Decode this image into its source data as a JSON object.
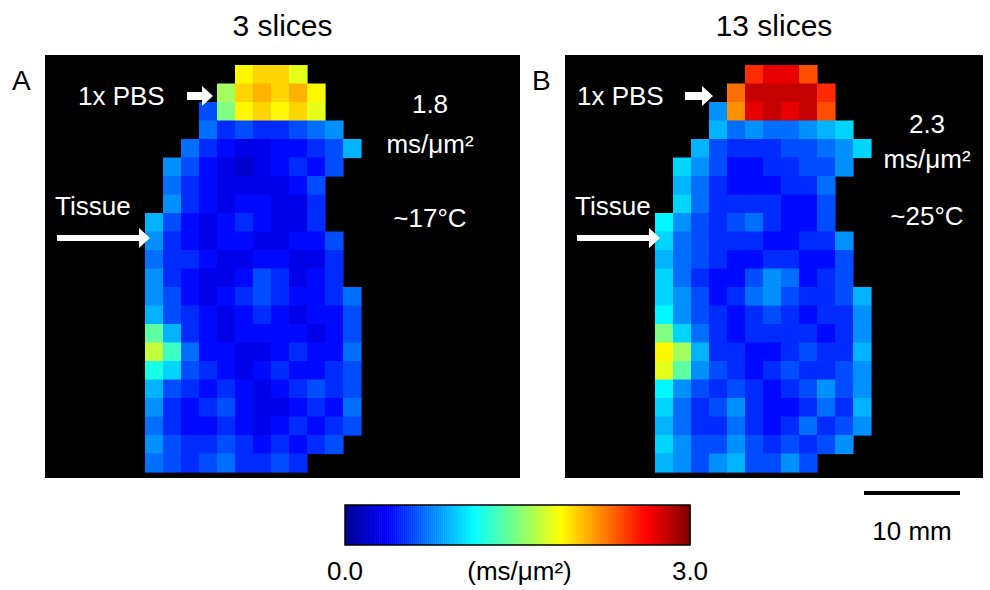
{
  "chart_data": [
    {
      "type": "heatmap",
      "title": "3 slices",
      "label": "A",
      "tick_labels": false,
      "annotations": {
        "medium": "1x PBS",
        "tissue": "Tissue",
        "value": "1.8 ms/μm²",
        "temperature": "~17°C"
      },
      "cells": [
        [
          null,
          null,
          null,
          null,
          null,
          1.9,
          2.0,
          2.0,
          1.8,
          null,
          null,
          null
        ],
        [
          null,
          null,
          null,
          null,
          1.6,
          2.0,
          2.1,
          2.0,
          2.1,
          1.9,
          null,
          null
        ],
        [
          null,
          null,
          null,
          0.6,
          1.5,
          1.9,
          2.0,
          1.9,
          2.0,
          1.8,
          null,
          null
        ],
        [
          null,
          null,
          null,
          0.7,
          0.5,
          0.6,
          0.5,
          0.5,
          0.6,
          0.7,
          0.8,
          null
        ],
        [
          null,
          null,
          0.7,
          0.5,
          0.4,
          0.3,
          0.3,
          0.4,
          0.4,
          0.5,
          0.6,
          0.9
        ],
        [
          null,
          0.8,
          0.6,
          0.4,
          0.3,
          0.2,
          0.3,
          0.4,
          0.5,
          0.4,
          0.6,
          null
        ],
        [
          null,
          0.7,
          0.5,
          0.4,
          0.3,
          0.3,
          0.3,
          0.3,
          0.4,
          0.6,
          null,
          null
        ],
        [
          null,
          0.8,
          0.5,
          0.4,
          0.3,
          0.4,
          0.4,
          0.3,
          0.3,
          0.5,
          null,
          null
        ],
        [
          0.9,
          0.6,
          0.4,
          0.3,
          0.4,
          0.5,
          0.4,
          0.3,
          0.3,
          0.5,
          null,
          null
        ],
        [
          0.8,
          0.5,
          0.4,
          0.3,
          0.4,
          0.4,
          0.3,
          0.3,
          0.4,
          0.4,
          0.6,
          null
        ],
        [
          0.7,
          0.5,
          0.5,
          0.4,
          0.3,
          0.3,
          0.4,
          0.4,
          0.3,
          0.3,
          0.5,
          null
        ],
        [
          0.8,
          0.5,
          0.4,
          0.3,
          0.3,
          0.4,
          0.6,
          0.5,
          0.3,
          0.4,
          0.5,
          null
        ],
        [
          0.8,
          0.6,
          0.4,
          0.3,
          0.4,
          0.5,
          0.6,
          0.5,
          0.4,
          0.4,
          0.5,
          0.7
        ],
        [
          0.9,
          0.6,
          0.5,
          0.4,
          0.3,
          0.4,
          0.5,
          0.4,
          0.3,
          0.4,
          0.4,
          0.6
        ],
        [
          1.4,
          0.9,
          0.5,
          0.4,
          0.3,
          0.4,
          0.4,
          0.4,
          0.4,
          0.3,
          0.4,
          0.6
        ],
        [
          1.7,
          1.3,
          0.7,
          0.4,
          0.4,
          0.3,
          0.3,
          0.4,
          0.5,
          0.4,
          0.4,
          0.7
        ],
        [
          1.2,
          1.0,
          0.6,
          0.5,
          0.4,
          0.3,
          0.4,
          0.5,
          0.4,
          0.4,
          0.5,
          0.6
        ],
        [
          0.9,
          0.6,
          0.5,
          0.4,
          0.5,
          0.4,
          0.3,
          0.4,
          0.5,
          0.6,
          0.5,
          0.6
        ],
        [
          0.8,
          0.5,
          0.4,
          0.5,
          0.6,
          0.4,
          0.3,
          0.3,
          0.4,
          0.5,
          0.4,
          0.7
        ],
        [
          0.7,
          0.5,
          0.4,
          0.4,
          0.5,
          0.4,
          0.3,
          0.4,
          0.5,
          0.4,
          0.5,
          0.6
        ],
        [
          0.8,
          0.6,
          0.5,
          0.5,
          0.6,
          0.5,
          0.4,
          0.5,
          0.4,
          0.5,
          0.6,
          null
        ],
        [
          0.7,
          0.6,
          0.5,
          0.6,
          0.7,
          0.5,
          0.5,
          0.6,
          0.5,
          null,
          null,
          null
        ]
      ]
    },
    {
      "type": "heatmap",
      "title": "13 slices",
      "label": "B",
      "tick_labels": false,
      "annotations": {
        "medium": "1x PBS",
        "tissue": "Tissue",
        "value": "2.3 ms/μm²",
        "temperature": "~25°C"
      },
      "cells": [
        [
          null,
          null,
          null,
          null,
          null,
          2.5,
          2.7,
          2.7,
          2.4,
          null,
          null,
          null
        ],
        [
          null,
          null,
          null,
          null,
          2.3,
          2.8,
          2.8,
          2.8,
          2.8,
          2.5,
          null,
          null
        ],
        [
          null,
          null,
          null,
          0.8,
          2.2,
          2.7,
          2.8,
          2.7,
          2.8,
          2.4,
          null,
          null
        ],
        [
          null,
          null,
          null,
          0.9,
          0.7,
          0.8,
          0.7,
          0.7,
          0.8,
          0.9,
          1.0,
          null
        ],
        [
          null,
          null,
          0.9,
          0.6,
          0.5,
          0.5,
          0.5,
          0.6,
          0.6,
          0.7,
          0.8,
          1.0
        ],
        [
          null,
          1.0,
          0.8,
          0.6,
          0.4,
          0.4,
          0.5,
          0.5,
          0.6,
          0.6,
          0.8,
          null
        ],
        [
          null,
          0.9,
          0.7,
          0.5,
          0.4,
          0.4,
          0.4,
          0.5,
          0.5,
          0.7,
          null,
          null
        ],
        [
          null,
          1.0,
          0.7,
          0.5,
          0.5,
          0.5,
          0.5,
          0.4,
          0.4,
          0.6,
          null,
          null
        ],
        [
          1.1,
          0.8,
          0.6,
          0.5,
          0.6,
          0.7,
          0.5,
          0.4,
          0.4,
          0.6,
          null,
          null
        ],
        [
          1.0,
          0.7,
          0.6,
          0.5,
          0.5,
          0.5,
          0.4,
          0.4,
          0.5,
          0.5,
          0.8,
          null
        ],
        [
          0.9,
          0.7,
          0.6,
          0.5,
          0.4,
          0.4,
          0.5,
          0.5,
          0.4,
          0.4,
          0.6,
          null
        ],
        [
          1.0,
          0.7,
          0.5,
          0.4,
          0.4,
          0.6,
          0.8,
          0.7,
          0.4,
          0.5,
          0.6,
          null
        ],
        [
          1.0,
          0.8,
          0.6,
          0.4,
          0.5,
          0.7,
          0.8,
          0.6,
          0.5,
          0.5,
          0.6,
          0.9
        ],
        [
          1.1,
          0.8,
          0.6,
          0.5,
          0.4,
          0.5,
          0.6,
          0.5,
          0.4,
          0.5,
          0.5,
          0.8
        ],
        [
          1.5,
          1.0,
          0.7,
          0.5,
          0.4,
          0.5,
          0.5,
          0.5,
          0.5,
          0.4,
          0.5,
          0.8
        ],
        [
          1.9,
          1.6,
          0.9,
          0.5,
          0.5,
          0.4,
          0.4,
          0.5,
          0.6,
          0.5,
          0.5,
          0.9
        ],
        [
          1.8,
          1.4,
          0.8,
          0.6,
          0.5,
          0.4,
          0.5,
          0.6,
          0.5,
          0.5,
          0.6,
          0.8
        ],
        [
          1.1,
          0.8,
          0.6,
          0.5,
          0.6,
          0.5,
          0.4,
          0.5,
          0.6,
          0.8,
          0.6,
          0.8
        ],
        [
          1.0,
          0.7,
          0.5,
          0.6,
          0.8,
          0.5,
          0.4,
          0.4,
          0.5,
          0.7,
          0.5,
          0.9
        ],
        [
          0.9,
          0.7,
          0.5,
          0.5,
          0.7,
          0.5,
          0.4,
          0.5,
          0.7,
          0.5,
          0.6,
          0.8
        ],
        [
          1.0,
          0.8,
          0.6,
          0.6,
          0.8,
          0.6,
          0.5,
          0.6,
          0.5,
          0.6,
          0.8,
          null
        ],
        [
          0.9,
          0.8,
          0.6,
          0.8,
          0.9,
          0.6,
          0.6,
          0.8,
          0.6,
          null,
          null,
          null
        ]
      ]
    }
  ],
  "colorbar": {
    "range": [
      0,
      3
    ],
    "ticks": [
      {
        "value": 0,
        "label": "0.0"
      },
      {
        "value": 3,
        "label": "3.0"
      }
    ],
    "label": "(ms/μm²)"
  },
  "scale_bar": "10 mm"
}
